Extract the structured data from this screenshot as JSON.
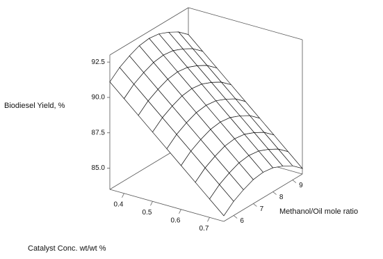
{
  "chart_data": {
    "type": "surface",
    "zlabel": "Biodiesel Yield, %",
    "xlabel": "Catalyst Conc. wt/wt %",
    "ylabel": "Methanol/Oil mole ratio",
    "x": [
      0.35,
      0.4,
      0.45,
      0.5,
      0.55,
      0.6,
      0.65,
      0.7,
      0.75
    ],
    "y": [
      5.5,
      6,
      6.5,
      7,
      7.5,
      8,
      8.5,
      9,
      9.5
    ],
    "z": [
      [
        91.1,
        91.7,
        92.1,
        92.4,
        92.5,
        92.4,
        92.1,
        91.7,
        91.1
      ],
      [
        90.2,
        90.8,
        91.2,
        91.5,
        91.6,
        91.5,
        91.2,
        90.8,
        90.2
      ],
      [
        89.3,
        89.9,
        90.3,
        90.6,
        90.7,
        90.6,
        90.3,
        89.9,
        89.3
      ],
      [
        88.4,
        89.0,
        89.4,
        89.7,
        89.8,
        89.7,
        89.4,
        89.0,
        88.4
      ],
      [
        87.5,
        88.1,
        88.5,
        88.8,
        88.9,
        88.8,
        88.5,
        88.1,
        87.5
      ],
      [
        86.6,
        87.2,
        87.6,
        87.9,
        88.0,
        87.9,
        87.6,
        87.2,
        86.6
      ],
      [
        85.7,
        86.3,
        86.7,
        87.0,
        87.1,
        87.0,
        86.7,
        86.3,
        85.7
      ],
      [
        84.8,
        85.4,
        85.8,
        86.1,
        86.2,
        86.1,
        85.8,
        85.4,
        84.8
      ],
      [
        83.9,
        84.5,
        84.9,
        85.2,
        85.3,
        85.2,
        84.9,
        84.5,
        83.9
      ]
    ],
    "xlim": [
      0.35,
      0.75
    ],
    "xticks": [
      0.4,
      0.5,
      0.6,
      0.7
    ],
    "ylim": [
      5.5,
      9.5
    ],
    "yticks": [
      6,
      7,
      8,
      9
    ],
    "zlim": [
      83.5,
      93
    ],
    "zticks": [
      {
        "value": 85,
        "label": "85.0"
      },
      87.5,
      {
        "value": 90,
        "label": "90.0"
      },
      92.5
    ],
    "color": "#ffffff",
    "line_color": "#111111"
  }
}
